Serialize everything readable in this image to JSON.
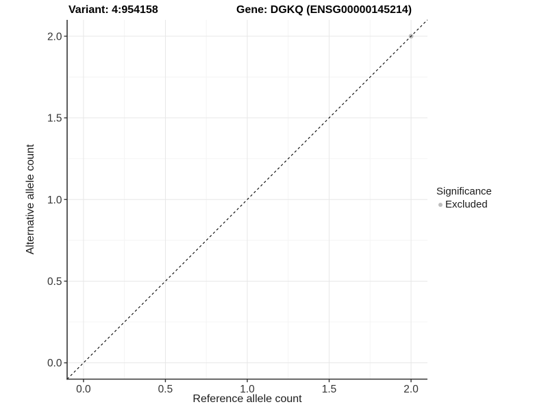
{
  "colors": {
    "background": "#ffffff",
    "major_grid": "#e7e7e7",
    "minor_grid": "#f4f4f4",
    "axis_line": "#333333",
    "tick_text": "#333333",
    "dashed_line": "#000000",
    "point": "#bebebe",
    "legend_point": "#bdbdbd"
  },
  "chart_data": {
    "type": "scatter",
    "title_left": "Variant: 4:954158",
    "title_right": "Gene: DGKQ (ENSG00000145214)",
    "xlabel": "Reference allele count",
    "ylabel": "Alternative allele count",
    "xlim": [
      -0.1,
      2.1
    ],
    "ylim": [
      -0.1,
      2.1
    ],
    "x_major_ticks": [
      0.0,
      0.5,
      1.0,
      1.5,
      2.0
    ],
    "x_tick_labels": [
      "0.0",
      "0.5",
      "1.0",
      "1.5",
      "2.0"
    ],
    "x_minor_ticks": [
      0.25,
      0.75,
      1.25,
      1.75
    ],
    "y_major_ticks": [
      0.0,
      0.5,
      1.0,
      1.5,
      2.0
    ],
    "y_tick_labels": [
      "0.0",
      "0.5",
      "1.0",
      "1.5",
      "2.0"
    ],
    "y_minor_ticks": [
      0.25,
      0.75,
      1.25,
      1.75
    ],
    "grid": true,
    "legend_position": "right",
    "reference_line": {
      "type": "identity",
      "slope": 1,
      "intercept": 0,
      "style": "dashed"
    },
    "points": [
      {
        "x": 2.0,
        "y": 2.0,
        "series": "Excluded"
      }
    ],
    "legend": {
      "title": "Significance",
      "items": [
        {
          "label": "Excluded",
          "color": "#bdbdbd"
        }
      ]
    }
  }
}
